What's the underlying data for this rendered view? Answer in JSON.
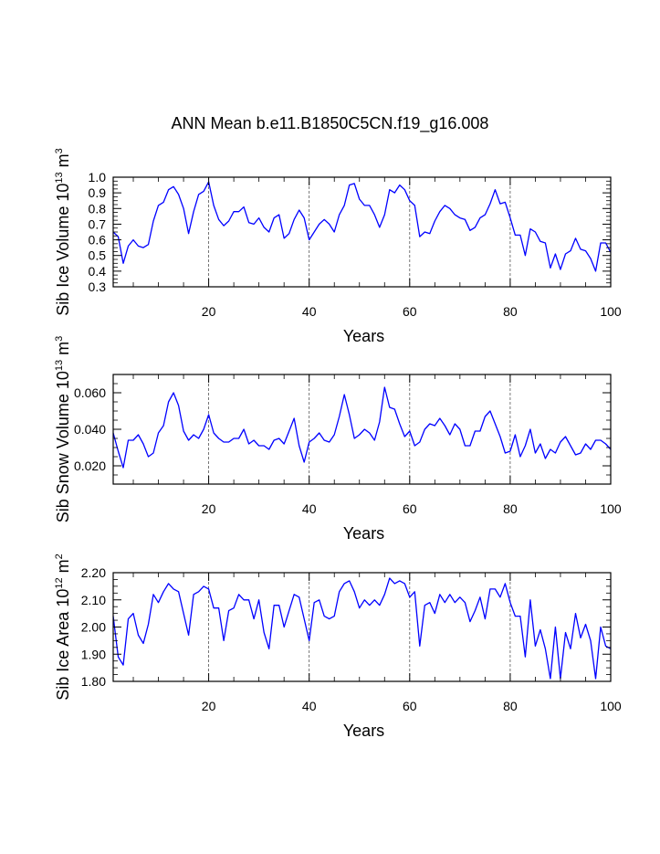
{
  "title": "ANN Mean b.e11.B1850C5CN.f19_g16.008",
  "chart_data": [
    {
      "type": "line",
      "ylabel_main": "Sib Ice Volume 10",
      "ylabel_exp": "13",
      "ylabel_unit": " m",
      "ylabel_unit_exp": "3",
      "xlabel": "Years",
      "xlim": [
        1,
        100
      ],
      "ylim": [
        0.3,
        1.0
      ],
      "x_ticks": [
        20,
        40,
        60,
        80,
        100
      ],
      "x_tick_labels": [
        "20",
        "40",
        "60",
        "80",
        "100"
      ],
      "y_ticks": [
        0.3,
        0.4,
        0.5,
        0.6,
        0.7,
        0.8,
        0.9,
        1.0
      ],
      "y_tick_labels": [
        "0.3",
        "0.4",
        "0.5",
        "0.6",
        "0.7",
        "0.8",
        "0.9",
        "1.0"
      ],
      "dashed_x_lines": [
        20,
        40,
        60,
        80
      ],
      "line_color": "#0000ff",
      "series": [
        {
          "name": "Sib Ice Volume",
          "values": [
            0.65,
            0.62,
            0.45,
            0.56,
            0.6,
            0.56,
            0.55,
            0.57,
            0.72,
            0.82,
            0.84,
            0.92,
            0.94,
            0.89,
            0.8,
            0.64,
            0.78,
            0.89,
            0.91,
            0.97,
            0.82,
            0.73,
            0.69,
            0.72,
            0.78,
            0.78,
            0.81,
            0.71,
            0.7,
            0.74,
            0.68,
            0.65,
            0.74,
            0.76,
            0.61,
            0.64,
            0.73,
            0.79,
            0.74,
            0.6,
            0.65,
            0.7,
            0.73,
            0.7,
            0.65,
            0.76,
            0.82,
            0.95,
            0.96,
            0.86,
            0.82,
            0.82,
            0.76,
            0.68,
            0.76,
            0.92,
            0.9,
            0.95,
            0.92,
            0.85,
            0.82,
            0.62,
            0.65,
            0.64,
            0.72,
            0.78,
            0.82,
            0.8,
            0.76,
            0.74,
            0.73,
            0.66,
            0.68,
            0.74,
            0.76,
            0.83,
            0.92,
            0.83,
            0.84,
            0.74,
            0.63,
            0.63,
            0.5,
            0.67,
            0.65,
            0.59,
            0.58,
            0.42,
            0.51,
            0.41,
            0.51,
            0.53,
            0.61,
            0.54,
            0.53,
            0.48,
            0.4,
            0.58,
            0.58,
            0.52
          ]
        }
      ]
    },
    {
      "type": "line",
      "ylabel_main": "Sib Snow Volume 10",
      "ylabel_exp": "13",
      "ylabel_unit": " m",
      "ylabel_unit_exp": "3",
      "xlabel": "Years",
      "xlim": [
        1,
        100
      ],
      "ylim": [
        0.01,
        0.07
      ],
      "x_ticks": [
        20,
        40,
        60,
        80,
        100
      ],
      "x_tick_labels": [
        "20",
        "40",
        "60",
        "80",
        "100"
      ],
      "y_ticks": [
        0.02,
        0.04,
        0.06
      ],
      "y_tick_labels": [
        "0.020",
        "0.040",
        "0.060"
      ],
      "dashed_x_lines": [
        20,
        40,
        60,
        80
      ],
      "line_color": "#0000ff",
      "series": [
        {
          "name": "Sib Snow Volume",
          "values": [
            0.038,
            0.028,
            0.019,
            0.034,
            0.034,
            0.037,
            0.032,
            0.025,
            0.027,
            0.038,
            0.042,
            0.055,
            0.06,
            0.053,
            0.039,
            0.034,
            0.037,
            0.035,
            0.04,
            0.048,
            0.038,
            0.035,
            0.033,
            0.033,
            0.035,
            0.035,
            0.04,
            0.032,
            0.034,
            0.031,
            0.031,
            0.029,
            0.034,
            0.035,
            0.032,
            0.039,
            0.046,
            0.031,
            0.022,
            0.033,
            0.035,
            0.038,
            0.034,
            0.033,
            0.037,
            0.047,
            0.059,
            0.048,
            0.035,
            0.037,
            0.04,
            0.038,
            0.034,
            0.044,
            0.063,
            0.052,
            0.051,
            0.043,
            0.036,
            0.039,
            0.031,
            0.033,
            0.04,
            0.043,
            0.042,
            0.046,
            0.042,
            0.037,
            0.043,
            0.04,
            0.031,
            0.031,
            0.039,
            0.039,
            0.047,
            0.05,
            0.043,
            0.036,
            0.027,
            0.028,
            0.037,
            0.025,
            0.031,
            0.04,
            0.027,
            0.032,
            0.024,
            0.029,
            0.027,
            0.033,
            0.036,
            0.031,
            0.026,
            0.027,
            0.032,
            0.029,
            0.034,
            0.034,
            0.032,
            0.029
          ]
        }
      ]
    },
    {
      "type": "line",
      "ylabel_main": "Sib Ice Area 10",
      "ylabel_exp": "12",
      "ylabel_unit": " m",
      "ylabel_unit_exp": "2",
      "xlabel": "Years",
      "xlim": [
        1,
        100
      ],
      "ylim": [
        1.8,
        2.2
      ],
      "x_ticks": [
        20,
        40,
        60,
        80,
        100
      ],
      "x_tick_labels": [
        "20",
        "40",
        "60",
        "80",
        "100"
      ],
      "y_ticks": [
        1.8,
        1.9,
        2.0,
        2.1,
        2.2
      ],
      "y_tick_labels": [
        "1.80",
        "1.90",
        "2.00",
        "2.10",
        "2.20"
      ],
      "dashed_x_lines": [
        20,
        40,
        60,
        80
      ],
      "line_color": "#0000ff",
      "series": [
        {
          "name": "Sib Ice Area",
          "values": [
            2.04,
            1.89,
            1.86,
            2.03,
            2.05,
            1.97,
            1.94,
            2.01,
            2.12,
            2.09,
            2.13,
            2.16,
            2.14,
            2.13,
            2.05,
            1.97,
            2.12,
            2.13,
            2.15,
            2.14,
            2.07,
            2.07,
            1.95,
            2.06,
            2.07,
            2.12,
            2.1,
            2.1,
            2.03,
            2.1,
            1.98,
            1.92,
            2.08,
            2.08,
            2.0,
            2.06,
            2.12,
            2.11,
            2.03,
            1.95,
            2.09,
            2.1,
            2.04,
            2.03,
            2.04,
            2.13,
            2.16,
            2.17,
            2.13,
            2.07,
            2.1,
            2.08,
            2.1,
            2.08,
            2.12,
            2.18,
            2.16,
            2.17,
            2.16,
            2.11,
            2.13,
            1.93,
            2.08,
            2.09,
            2.05,
            2.12,
            2.09,
            2.12,
            2.09,
            2.11,
            2.09,
            2.02,
            2.06,
            2.11,
            2.03,
            2.14,
            2.14,
            2.11,
            2.16,
            2.09,
            2.04,
            2.04,
            1.89,
            2.1,
            1.93,
            1.99,
            1.92,
            1.81,
            2.0,
            1.81,
            1.98,
            1.92,
            2.05,
            1.96,
            2.01,
            1.95,
            1.81,
            2.0,
            1.93,
            1.92
          ]
        }
      ]
    }
  ]
}
